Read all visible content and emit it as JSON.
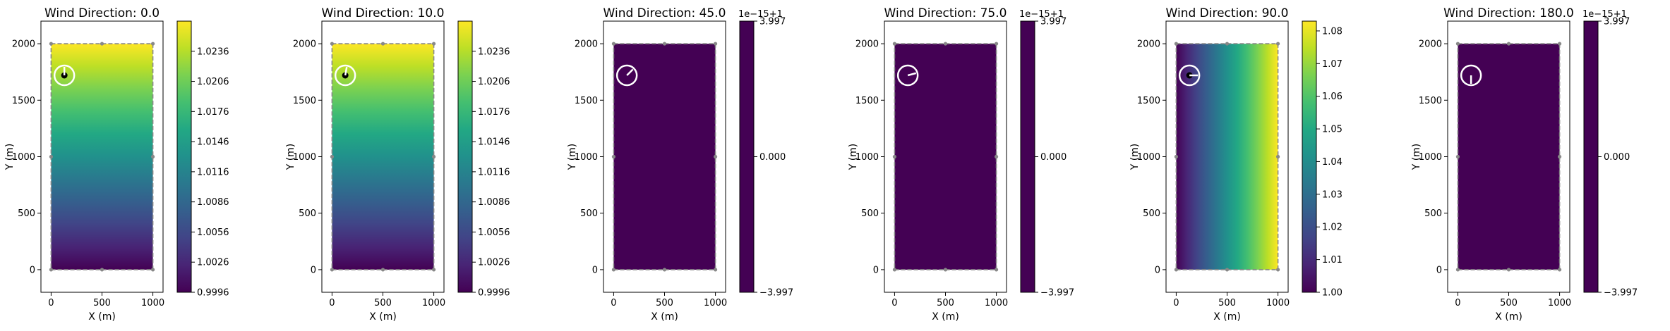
{
  "chart_data": [
    {
      "type": "heatmap",
      "title": "Wind Direction: 0.0",
      "xlabel": "X (m)",
      "ylabel": "Y (m)",
      "xlim": [
        -100,
        1100
      ],
      "ylim": [
        -200,
        2200
      ],
      "xticks": [
        0,
        500,
        1000
      ],
      "yticks": [
        0,
        500,
        1000,
        1500,
        2000
      ],
      "field_direction": "vertical",
      "wind_direction_deg": 0,
      "colorbar": {
        "range": [
          0.9996,
          1.0266
        ],
        "ticks": [
          0.9996,
          1.0026,
          1.0056,
          1.0086,
          1.0116,
          1.0146,
          1.0176,
          1.0206,
          1.0236
        ],
        "tick_labels": [
          "0.9996",
          "1.0026",
          "1.0056",
          "1.0086",
          "1.0116",
          "1.0146",
          "1.0176",
          "1.0206",
          "1.0236"
        ],
        "offset_label": ""
      }
    },
    {
      "type": "heatmap",
      "title": "Wind Direction: 10.0",
      "xlabel": "X (m)",
      "ylabel": "Y (m)",
      "xlim": [
        -100,
        1100
      ],
      "ylim": [
        -200,
        2200
      ],
      "xticks": [
        0,
        500,
        1000
      ],
      "yticks": [
        0,
        500,
        1000,
        1500,
        2000
      ],
      "field_direction": "vertical",
      "wind_direction_deg": 10,
      "colorbar": {
        "range": [
          0.9996,
          1.0266
        ],
        "ticks": [
          0.9996,
          1.0026,
          1.0056,
          1.0086,
          1.0116,
          1.0146,
          1.0176,
          1.0206,
          1.0236
        ],
        "tick_labels": [
          "0.9996",
          "1.0026",
          "1.0056",
          "1.0086",
          "1.0116",
          "1.0146",
          "1.0176",
          "1.0206",
          "1.0236"
        ],
        "offset_label": ""
      }
    },
    {
      "type": "heatmap",
      "title": "Wind Direction: 45.0",
      "xlabel": "X (m)",
      "ylabel": "Y (m)",
      "xlim": [
        -100,
        1100
      ],
      "ylim": [
        -200,
        2200
      ],
      "xticks": [
        0,
        500,
        1000
      ],
      "yticks": [
        0,
        500,
        1000,
        1500,
        2000
      ],
      "field_direction": "uniform",
      "wind_direction_deg": 45,
      "colorbar": {
        "range": [
          -3.997,
          3.997
        ],
        "ticks": [
          -3.997,
          0.0,
          3.997
        ],
        "tick_labels": [
          "−3.997",
          "0.000",
          "3.997"
        ],
        "offset_label": "1e−15+1"
      }
    },
    {
      "type": "heatmap",
      "title": "Wind Direction: 75.0",
      "xlabel": "X (m)",
      "ylabel": "Y (m)",
      "xlim": [
        -100,
        1100
      ],
      "ylim": [
        -200,
        2200
      ],
      "xticks": [
        0,
        500,
        1000
      ],
      "yticks": [
        0,
        500,
        1000,
        1500,
        2000
      ],
      "field_direction": "uniform",
      "wind_direction_deg": 75,
      "colorbar": {
        "range": [
          -3.997,
          3.997
        ],
        "ticks": [
          -3.997,
          0.0,
          3.997
        ],
        "tick_labels": [
          "−3.997",
          "0.000",
          "3.997"
        ],
        "offset_label": "1e−15+1"
      }
    },
    {
      "type": "heatmap",
      "title": "Wind Direction: 90.0",
      "xlabel": "X (m)",
      "ylabel": "Y (m)",
      "xlim": [
        -100,
        1100
      ],
      "ylim": [
        -200,
        2200
      ],
      "xticks": [
        0,
        500,
        1000
      ],
      "yticks": [
        0,
        500,
        1000,
        1500,
        2000
      ],
      "field_direction": "horizontal",
      "wind_direction_deg": 90,
      "colorbar": {
        "range": [
          1.0,
          1.083
        ],
        "ticks": [
          1.0,
          1.01,
          1.02,
          1.03,
          1.04,
          1.05,
          1.06,
          1.07,
          1.08
        ],
        "tick_labels": [
          "1.00",
          "1.01",
          "1.02",
          "1.03",
          "1.04",
          "1.05",
          "1.06",
          "1.07",
          "1.08"
        ],
        "offset_label": ""
      }
    },
    {
      "type": "heatmap",
      "title": "Wind Direction: 180.0",
      "xlabel": "X (m)",
      "ylabel": "Y (m)",
      "xlim": [
        -100,
        1100
      ],
      "ylim": [
        -200,
        2200
      ],
      "xticks": [
        0,
        500,
        1000
      ],
      "yticks": [
        0,
        500,
        1000,
        1500,
        2000
      ],
      "field_direction": "uniform",
      "wind_direction_deg": 180,
      "colorbar": {
        "range": [
          -3.997,
          3.997
        ],
        "ticks": [
          -3.997,
          0.0,
          3.997
        ],
        "tick_labels": [
          "−3.997",
          "0.000",
          "3.997"
        ],
        "offset_label": "1e−15+1"
      }
    }
  ],
  "domain_rect": {
    "x": [
      0,
      1000
    ],
    "y": [
      0,
      2000
    ]
  },
  "boundary_points": [
    [
      0,
      0
    ],
    [
      500,
      0
    ],
    [
      1000,
      0
    ],
    [
      1000,
      1000
    ],
    [
      1000,
      2000
    ],
    [
      500,
      2000
    ],
    [
      0,
      2000
    ],
    [
      0,
      1000
    ]
  ],
  "wind_indicator": {
    "x": 130,
    "y": 1720
  },
  "colors": {
    "viridis_low": "#440154",
    "viridis_mid": "#21918c",
    "viridis_high": "#addc30",
    "boundary": "#888888",
    "indicator": "#ffffff",
    "indicator_needle": "#000000"
  }
}
